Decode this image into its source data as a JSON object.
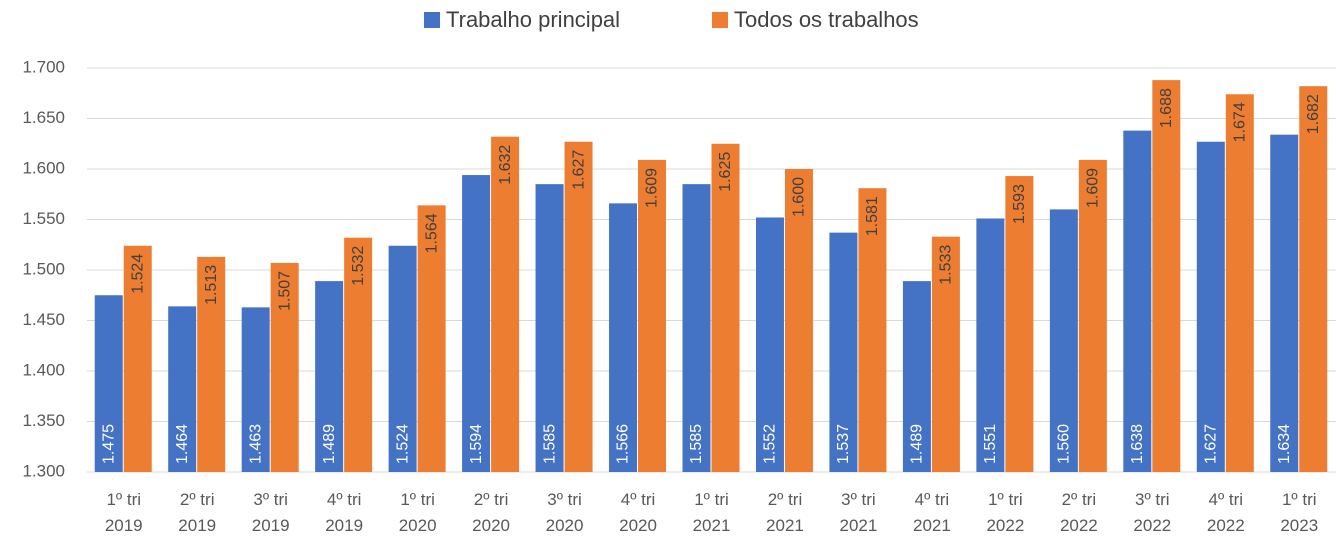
{
  "chart_data": {
    "type": "bar",
    "categories": [
      "1º tri 2019",
      "2º tri 2019",
      "3º tri 2019",
      "4º tri 2019",
      "1º tri 2020",
      "2º tri 2020",
      "3º tri 2020",
      "4º tri 2020",
      "1º tri 2021",
      "2º tri 2021",
      "3º tri 2021",
      "4º tri 2021",
      "1º tri 2022",
      "2º tri 2022",
      "3º tri 2022",
      "4º tri 2022",
      "1º tri 2023"
    ],
    "series": [
      {
        "name": "Trabalho principal",
        "color": "#4472c4",
        "values": [
          1475,
          1464,
          1463,
          1489,
          1524,
          1594,
          1585,
          1566,
          1585,
          1552,
          1537,
          1489,
          1551,
          1560,
          1638,
          1627,
          1634
        ],
        "value_labels": [
          "1.475",
          "1.464",
          "1.463",
          "1.489",
          "1.524",
          "1.594",
          "1.585",
          "1.566",
          "1.585",
          "1.552",
          "1.537",
          "1.489",
          "1.551",
          "1.560",
          "1.638",
          "1.627",
          "1.634"
        ]
      },
      {
        "name": "Todos os trabalhos",
        "color": "#ed7d31",
        "values": [
          1524,
          1513,
          1507,
          1532,
          1564,
          1632,
          1627,
          1609,
          1625,
          1600,
          1581,
          1533,
          1593,
          1609,
          1688,
          1674,
          1682
        ],
        "value_labels": [
          "1.524",
          "1.513",
          "1.507",
          "1.532",
          "1.564",
          "1.632",
          "1.627",
          "1.609",
          "1.625",
          "1.600",
          "1.581",
          "1.533",
          "1.593",
          "1.609",
          "1.688",
          "1.674",
          "1.682"
        ]
      }
    ],
    "ylim": [
      1300,
      1700
    ],
    "yticks": [
      {
        "value": 1300,
        "label": "1.300"
      },
      {
        "value": 1350,
        "label": "1.350"
      },
      {
        "value": 1400,
        "label": "1.400"
      },
      {
        "value": 1450,
        "label": "1.450"
      },
      {
        "value": 1500,
        "label": "1.500"
      },
      {
        "value": 1550,
        "label": "1.550"
      },
      {
        "value": 1600,
        "label": "1.600"
      },
      {
        "value": 1650,
        "label": "1.650"
      },
      {
        "value": 1700,
        "label": "1.700"
      }
    ],
    "grid": true,
    "legend": "top"
  }
}
